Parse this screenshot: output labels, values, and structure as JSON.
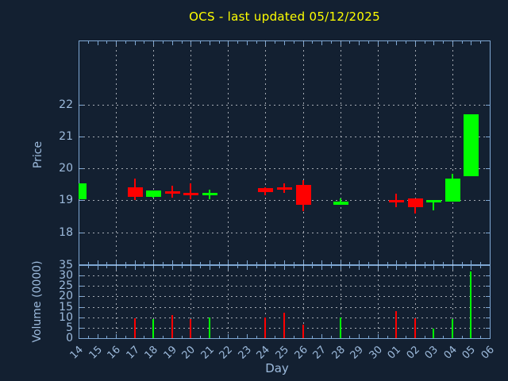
{
  "title": {
    "text": "OCS - last updated 05/12/2025"
  },
  "colors": {
    "background": "#132031",
    "frame": "#7ea7d3",
    "text": "#9dbbdd",
    "grid": "#c9cdd3",
    "title": "#ffff00",
    "up": "#00ff00",
    "down": "#ff0000"
  },
  "axes": {
    "price": {
      "label": "Price",
      "tick_labels": [
        22,
        21,
        20,
        19,
        18
      ],
      "range": [
        17,
        24
      ]
    },
    "volume": {
      "label": "Volume (0000)",
      "tick_labels": [
        35,
        30,
        25,
        20,
        15,
        10,
        5,
        0
      ],
      "range": [
        0,
        35
      ]
    },
    "x": {
      "label": "Day",
      "tick_labels": [
        "14",
        "15",
        "16",
        "17",
        "18",
        "19",
        "20",
        "21",
        "22",
        "23",
        "24",
        "25",
        "26",
        "27",
        "28",
        "29",
        "30",
        "01",
        "02",
        "03",
        "04",
        "05",
        "06"
      ]
    }
  },
  "chart_data": {
    "type": "candlestick",
    "title": "OCS - last updated 05/12/2025",
    "xlabel": "Day",
    "ylabel_top": "Price",
    "ylabel_bottom": "Volume (0000)",
    "x_days": [
      "14",
      "15",
      "16",
      "17",
      "18",
      "19",
      "20",
      "21",
      "22",
      "23",
      "24",
      "25",
      "26",
      "27",
      "28",
      "29",
      "30",
      "01",
      "02",
      "03",
      "04",
      "05",
      "06"
    ],
    "grid_days": [
      "16",
      "18",
      "20",
      "22",
      "24",
      "26",
      "28",
      "30",
      "02",
      "04"
    ],
    "price_gridlines": [
      18,
      19,
      20,
      21,
      22
    ],
    "volume_gridlines": [
      5,
      10,
      15,
      20,
      25,
      30
    ],
    "price_range": [
      17,
      24
    ],
    "volume_range": [
      0,
      35
    ],
    "candles": [
      {
        "day": "14",
        "open": 19.03,
        "high": 19.54,
        "low": 19.03,
        "close": 19.54,
        "volume": null,
        "direction": "up"
      },
      {
        "day": "17",
        "open": 19.4,
        "high": 19.68,
        "low": 19.02,
        "close": 19.1,
        "volume": 9.5,
        "direction": "down"
      },
      {
        "day": "18",
        "open": 19.1,
        "high": 19.32,
        "low": 19.08,
        "close": 19.3,
        "volume": 9,
        "direction": "up"
      },
      {
        "day": "19",
        "open": 19.28,
        "high": 19.46,
        "low": 19.09,
        "close": 19.2,
        "volume": 11,
        "direction": "down"
      },
      {
        "day": "20",
        "open": 19.24,
        "high": 19.53,
        "low": 19.04,
        "close": 19.17,
        "volume": 9,
        "direction": "down"
      },
      {
        "day": "21",
        "open": 19.16,
        "high": 19.34,
        "low": 19.04,
        "close": 19.24,
        "volume": 10,
        "direction": "up"
      },
      {
        "day": "24",
        "open": 19.38,
        "high": 19.4,
        "low": 19.16,
        "close": 19.27,
        "volume": 10,
        "direction": "down"
      },
      {
        "day": "25",
        "open": 19.41,
        "high": 19.53,
        "low": 19.24,
        "close": 19.33,
        "volume": 12,
        "direction": "down"
      },
      {
        "day": "26",
        "open": 19.47,
        "high": 19.62,
        "low": 18.66,
        "close": 18.85,
        "volume": 6.5,
        "direction": "down"
      },
      {
        "day": "28",
        "open": 18.87,
        "high": 19.06,
        "low": 18.85,
        "close": 18.97,
        "volume": 10,
        "direction": "up"
      },
      {
        "day": "01",
        "open": 19.0,
        "high": 19.2,
        "low": 18.78,
        "close": 18.96,
        "volume": 13,
        "direction": "down"
      },
      {
        "day": "02",
        "open": 19.06,
        "high": 19.06,
        "low": 18.58,
        "close": 18.78,
        "volume": 9.5,
        "direction": "down"
      },
      {
        "day": "03",
        "open": 18.95,
        "high": 19.01,
        "low": 18.68,
        "close": 19.0,
        "volume": 4.5,
        "direction": "up"
      },
      {
        "day": "04",
        "open": 18.95,
        "high": 19.82,
        "low": 18.95,
        "close": 19.68,
        "volume": 9,
        "direction": "up"
      },
      {
        "day": "05",
        "open": 19.76,
        "high": 21.7,
        "low": 19.76,
        "close": 21.7,
        "volume": 32,
        "direction": "up"
      }
    ]
  }
}
